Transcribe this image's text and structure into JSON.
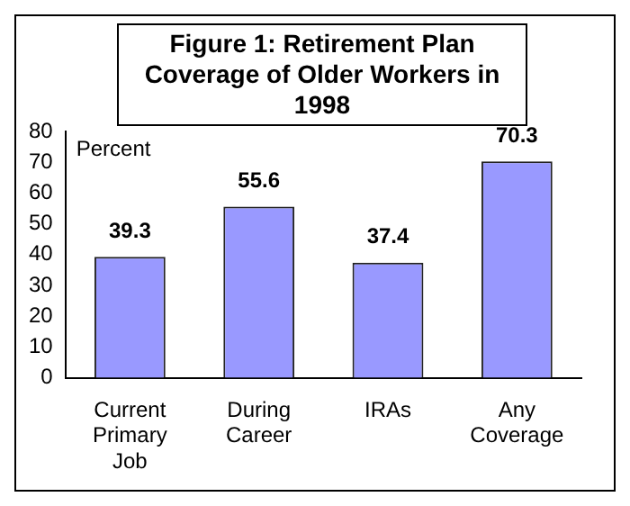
{
  "chart_data": {
    "type": "bar",
    "title": "Figure 1: Retirement Plan Coverage of Older Workers in 1998",
    "ylabel": "Percent",
    "categories": [
      "Current Primary Job",
      "During Career",
      "IRAs",
      "Any Coverage"
    ],
    "values": [
      39.3,
      55.6,
      37.4,
      70.3
    ],
    "color": "#9999ff",
    "ylim": [
      0,
      80
    ],
    "yticks": [
      0,
      10,
      20,
      30,
      40,
      50,
      60,
      70,
      80
    ],
    "grid": false,
    "legend": false,
    "data_labels": true
  }
}
